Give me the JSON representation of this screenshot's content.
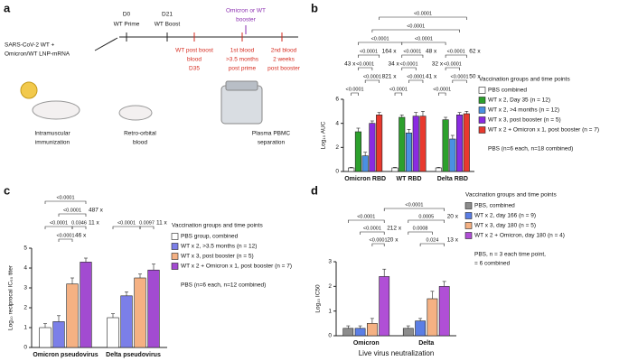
{
  "panel_letters": [
    "a",
    "b",
    "c",
    "d"
  ],
  "panel_a": {
    "labels": [
      "SARS-CoV-2 WT +",
      "Omicron/WT LNP-mRNA",
      "D0",
      "WT Prime",
      "D21",
      "WT Boost",
      "Omicron or WT",
      "booster",
      "WT post boost",
      "blood",
      "D35",
      "1st blood",
      ">3.5 months",
      "post prime",
      "2nd blood",
      "2 weeks",
      "post booster",
      "Intramuscular",
      "immunization",
      "Retro-orbital",
      "blood",
      "Plasma PBMC",
      "separation"
    ]
  },
  "chart_data": [
    {
      "type": "bar",
      "y_label": "Log₁₀ AUC",
      "categories": [
        "Omicron RBD",
        "WT RBD",
        "Delta RBD"
      ],
      "ylim": [
        0,
        6
      ],
      "yticks": [
        0,
        2,
        4,
        6
      ],
      "series": [
        {
          "name": "PBS combined",
          "color": "#ffffff",
          "values": [
            0.3,
            0.3,
            0.3
          ],
          "errors": [
            0.05,
            0.05,
            0.05
          ]
        },
        {
          "name": "WT x 2, Day 35 (n = 12)",
          "color": "#2ca02c",
          "values": [
            3.3,
            4.5,
            4.3
          ],
          "errors": [
            0.3,
            0.2,
            0.2
          ]
        },
        {
          "name": "WT x 2, >4 months (n = 12)",
          "color": "#4a90e2",
          "values": [
            1.3,
            3.2,
            2.7
          ],
          "errors": [
            0.3,
            0.3,
            0.3
          ]
        },
        {
          "name": "WT x 3, post booster (n = 5)",
          "color": "#8a2be2",
          "values": [
            4.0,
            4.6,
            4.7
          ],
          "errors": [
            0.2,
            0.3,
            0.2
          ]
        },
        {
          "name": "WT x 2 + Omicron x 1, post booster (n = 7)",
          "color": "#e8392e",
          "values": [
            4.7,
            4.6,
            4.8
          ],
          "errors": [
            0.2,
            0.4,
            0.2
          ]
        }
      ],
      "legend_title": "Vaccination groups and time points",
      "note": [
        "PBS (n=6 each, n=18 combined)"
      ],
      "fold_color": "#2b2bd0",
      "brackets": [
        {
          "p": "<0.0001"
        },
        {
          "p": "<0.0001"
        },
        {
          "p": "<0.0001"
        },
        {
          "p": "<0.0001"
        },
        {
          "p": "<0.0001",
          "fold": "164 x"
        },
        {
          "p": "<0.0001",
          "fold": "43 x"
        },
        {
          "p": "<0.0001",
          "fold": "821 x"
        },
        {
          "p": "<0.0001"
        },
        {
          "p": "<0.0001",
          "fold": "48 x"
        },
        {
          "p": "<0.0001",
          "fold": "34 x"
        },
        {
          "p": "<0.0001",
          "fold": "41 x"
        },
        {
          "p": "<0.0001"
        },
        {
          "p": "<0.0001",
          "fold": "62 x"
        },
        {
          "p": "<0.0001",
          "fold": "32 x"
        },
        {
          "p": "<0.0001",
          "fold": "50 x"
        },
        {
          "p": "<0.0001"
        }
      ]
    },
    {
      "type": "bar",
      "y_label": "Log₁₀ reciprocal IC₅₀ titer",
      "categories": [
        "Omicron pseudovirus",
        "Delta pseudovirus"
      ],
      "ylim": [
        0,
        5
      ],
      "yticks": [
        0,
        1,
        2,
        3,
        4,
        5
      ],
      "series": [
        {
          "name": "PBS group, combined",
          "color": "#ffffff",
          "values": [
            1.0,
            1.5
          ],
          "errors": [
            0.2,
            0.2
          ]
        },
        {
          "name": "WT x 2, >3.5 months (n = 12)",
          "color": "#7b7fe8",
          "values": [
            1.3,
            2.6
          ],
          "errors": [
            0.3,
            0.2
          ]
        },
        {
          "name": "WT x 3, post booster (n = 5)",
          "color": "#f5b183",
          "values": [
            3.2,
            3.5
          ],
          "errors": [
            0.3,
            0.2
          ]
        },
        {
          "name": "WT x 2 + Omicron x 1, post booster (n = 7)",
          "color": "#a24bd1",
          "values": [
            4.3,
            3.9
          ],
          "errors": [
            0.2,
            0.3
          ]
        }
      ],
      "legend_title": "Vaccination groups and time points",
      "note": [
        "PBS (n=6 each, n=12 combined)"
      ],
      "fold_color": "#2aa52a",
      "brackets": [
        {
          "p": "<0.0001"
        },
        {
          "p": "<0.0001",
          "fold": "487 x"
        },
        {
          "p": "<0.0001"
        },
        {
          "p": "0.0346",
          "fold": "11 x"
        },
        {
          "p": "<0.0001",
          "fold": "46 x"
        },
        {
          "p": "<0.0001"
        },
        {
          "p": "0.0097",
          "fold": "11 x"
        }
      ]
    },
    {
      "type": "bar",
      "y_label": "Log₁₀ IC50",
      "x_label": "Live virus neutralization",
      "categories": [
        "Omicron",
        "Delta"
      ],
      "ylim": [
        0,
        3
      ],
      "yticks": [
        0,
        1,
        2,
        3
      ],
      "series": [
        {
          "name": "PBS, combined",
          "color": "#8c8c8c",
          "values": [
            0.3,
            0.3
          ],
          "errors": [
            0.1,
            0.1
          ]
        },
        {
          "name": "WT x 2, day 166 (n = 9)",
          "color": "#5b7ee5",
          "values": [
            0.3,
            0.6
          ],
          "errors": [
            0.1,
            0.1
          ]
        },
        {
          "name": "WT x 3, day 180 (n = 5)",
          "color": "#f5b183",
          "values": [
            0.5,
            1.5
          ],
          "errors": [
            0.2,
            0.3
          ]
        },
        {
          "name": "WT x 2 + Omicron, day 180 (n = 4)",
          "color": "#b04fd6",
          "values": [
            2.4,
            2.0
          ],
          "errors": [
            0.3,
            0.2
          ]
        }
      ],
      "legend_title": "Vaccination groups and time points",
      "note": [
        "PBS, n = 3 each time point,",
        "= 6 combined"
      ],
      "fold_color": "#b0308a",
      "brackets": [
        {
          "p": "<0.0001"
        },
        {
          "p": "<0.0001"
        },
        {
          "p": "<0.0001",
          "fold": "212 x"
        },
        {
          "p": "<0.0001",
          "fold": "20 x"
        },
        {
          "p": "0.0005",
          "fold": "20 x"
        },
        {
          "p": "0.0008"
        },
        {
          "p": "0.024",
          "fold": "13 x"
        }
      ]
    }
  ]
}
